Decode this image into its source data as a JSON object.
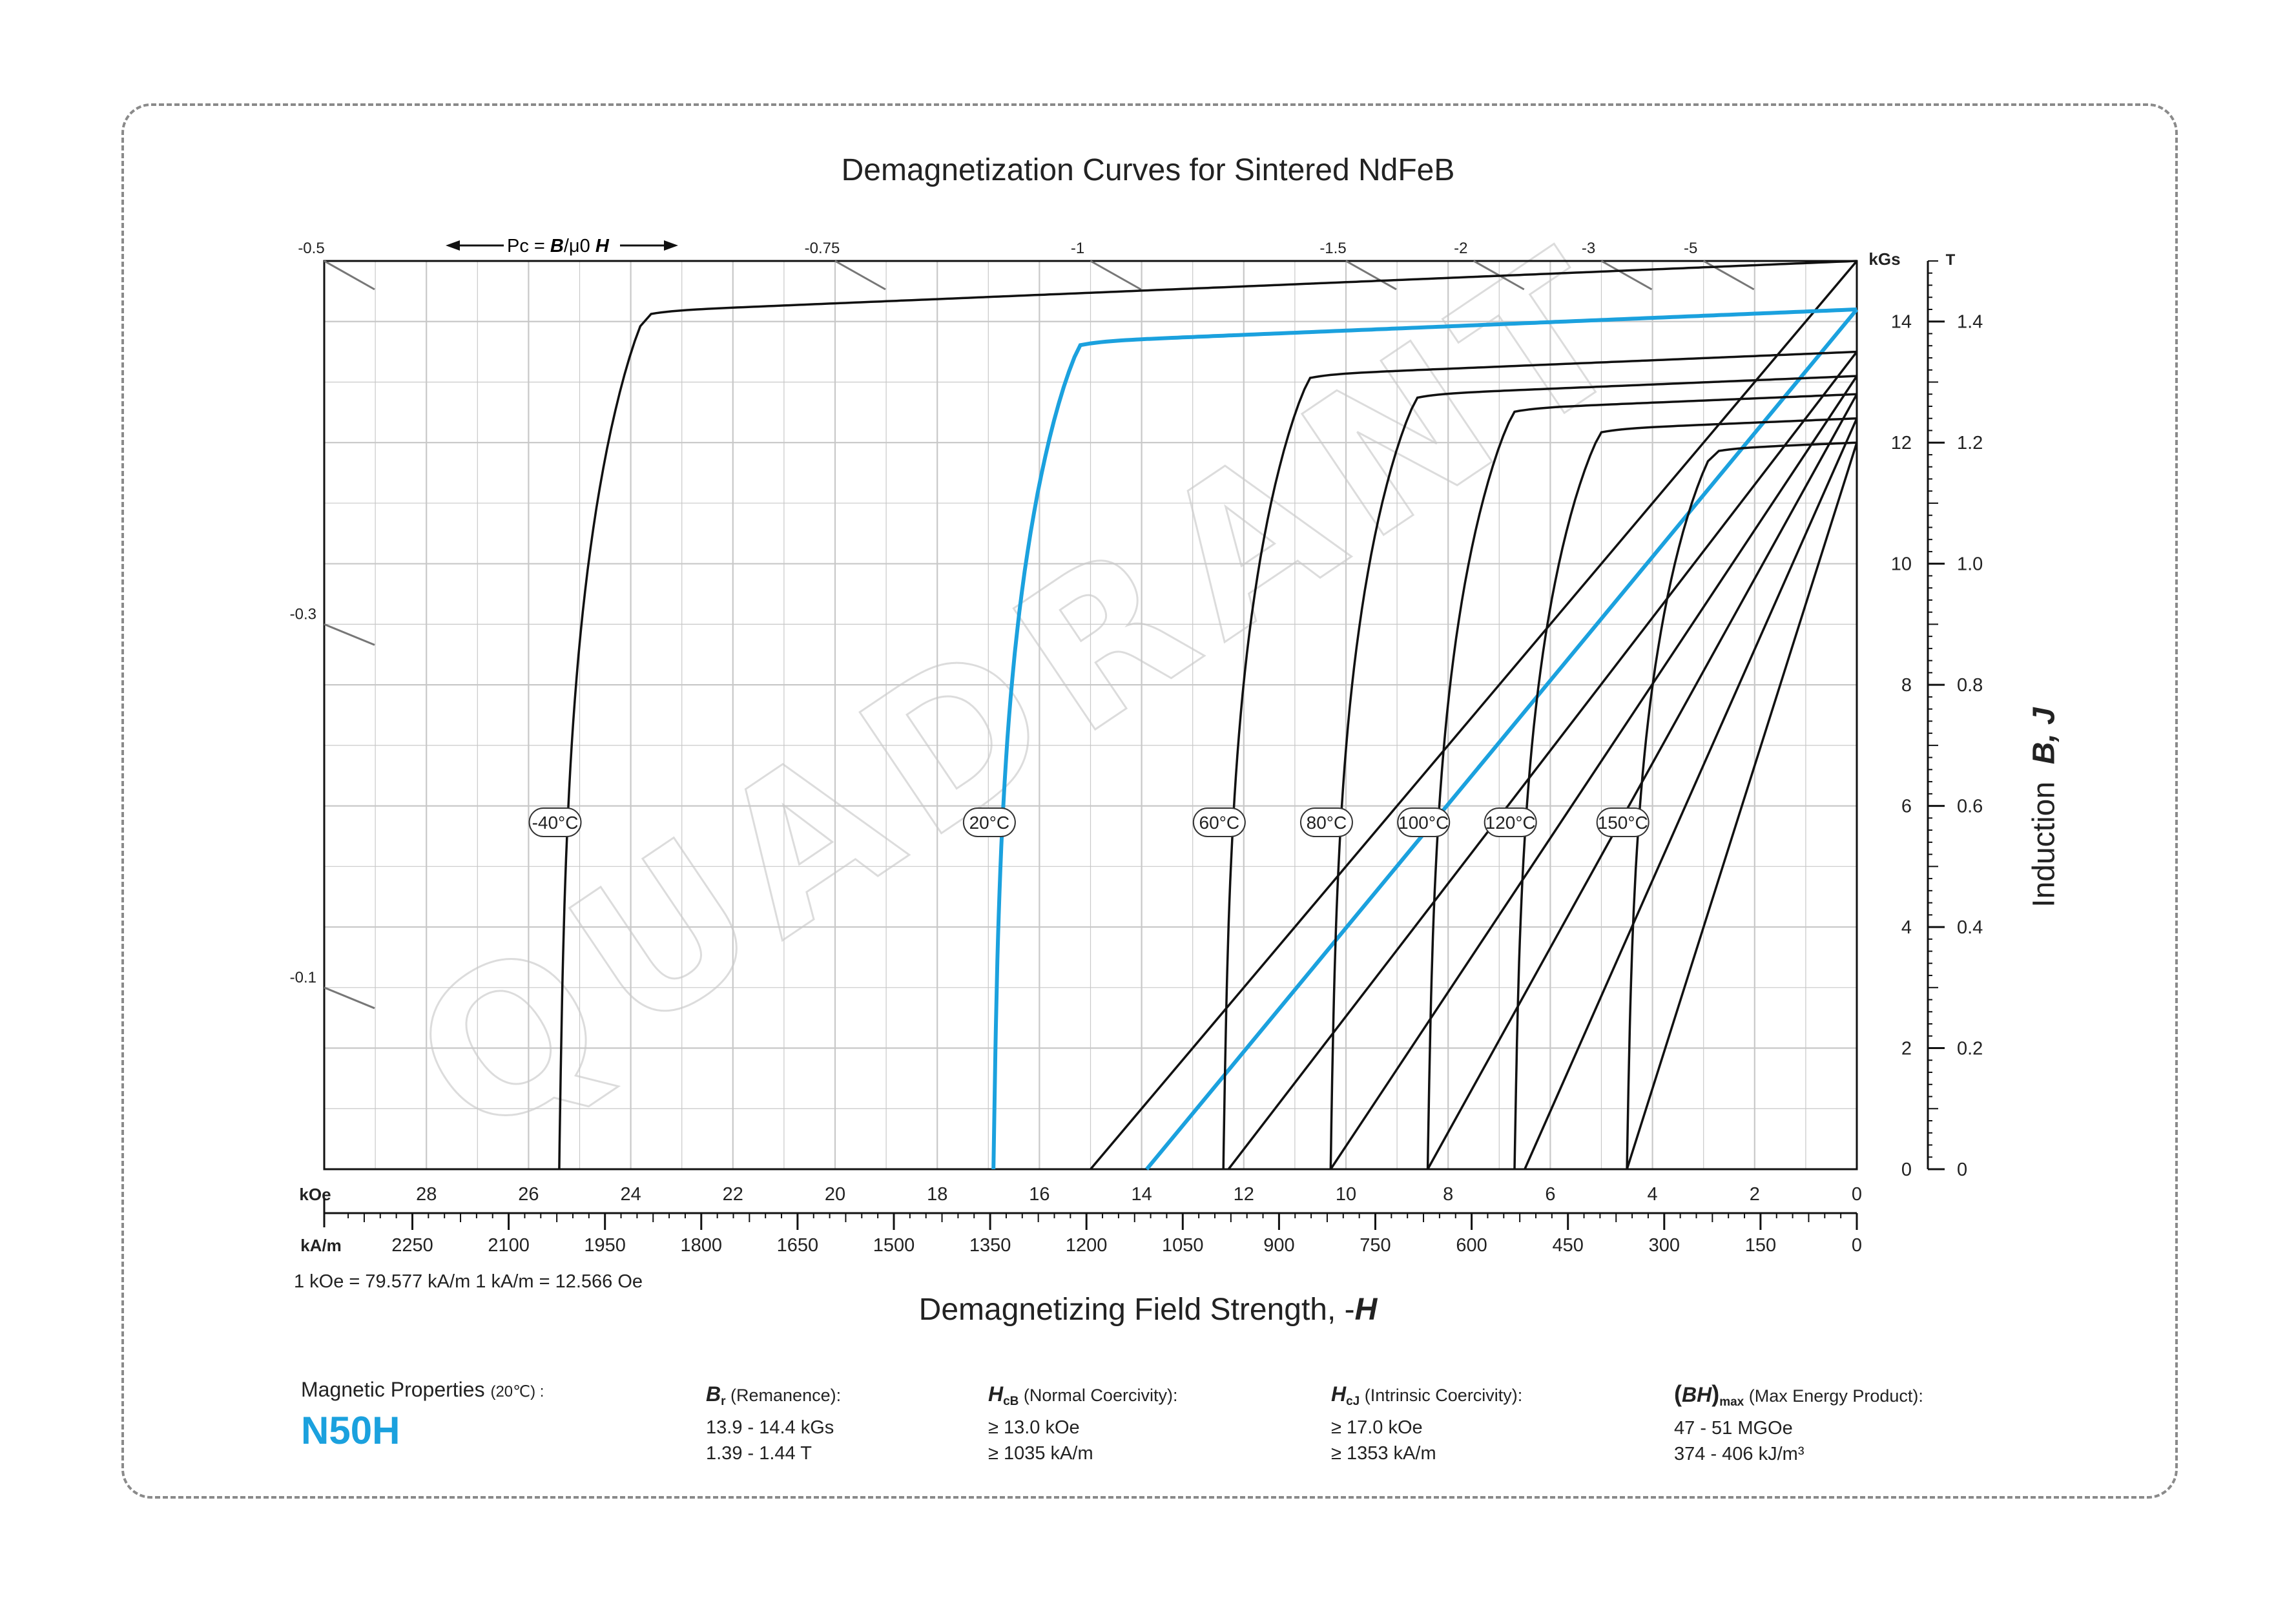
{
  "title": "Demagnetization Curves for Sintered NdFeB",
  "x_axis": {
    "title_prefix": "Demagnetizing Field Strength, -",
    "title_symbol": "H",
    "unit_top": "kOe",
    "unit_bottom": "kA/m",
    "conversion": "1 kOe = 79.577 kA/m   1 kA/m = 12.566 Oe"
  },
  "y_axis": {
    "title_prefix": "Induction",
    "title_symbols": "B, J",
    "unit_left": "kGs",
    "unit_right": "T"
  },
  "pc_label": {
    "prefix": "Pc = ",
    "b": "B",
    "mid": "/μ0 ",
    "h": "H"
  },
  "watermark": "QUADRANT",
  "properties": {
    "label": "Magnetic Properties",
    "label_cond": "(20℃) :",
    "grade": "N50H",
    "br": {
      "sym": "B",
      "sub": "r",
      "name": "(Remanence):",
      "line1": "13.9 - 14.4 kGs",
      "line2": "1.39 - 1.44 T"
    },
    "hcb": {
      "sym": "H",
      "sub": "cB",
      "name": "(Normal Coercivity):",
      "line1": "≥ 13.0 kOe",
      "line2": "≥ 1035 kA/m"
    },
    "hcj": {
      "sym": "H",
      "sub": "cJ",
      "name": "(Intrinsic Coercivity):",
      "line1": "≥ 17.0 kOe",
      "line2": "≥ 1353 kA/m"
    },
    "bh": {
      "sym": "BH",
      "sub": "max",
      "name": "(Max Energy Product):",
      "line1": "47 - 51 MGOe",
      "line2": "374 - 406 kJ/m³"
    }
  },
  "colors": {
    "highlight": "#1ba1de",
    "curve": "#111111",
    "grid": "#c8c8c8"
  },
  "chart_data": {
    "type": "line",
    "title": "Demagnetization Curves for Sintered NdFeB",
    "x_label": "Demagnetizing Field Strength, -H",
    "y_label": "Induction B, J",
    "xlim_koe": [
      30,
      0
    ],
    "ylim_kgs": [
      0,
      15
    ],
    "x_ticks_koe": [
      28,
      26,
      24,
      22,
      20,
      18,
      16,
      14,
      12,
      10,
      8,
      6,
      4,
      2,
      0
    ],
    "x_ticks_kam": [
      2250,
      2100,
      1950,
      1800,
      1650,
      1500,
      1350,
      1200,
      1050,
      900,
      750,
      600,
      450,
      300,
      150,
      0
    ],
    "y_ticks_kgs": [
      0,
      2,
      4,
      6,
      8,
      10,
      12,
      14
    ],
    "y_ticks_t": [
      "0",
      "0.2",
      "0.4",
      "0.6",
      "0.8",
      "1.0",
      "1.2",
      "1.4"
    ],
    "pc_lines": [
      "-0.5",
      "-0.75",
      "-1",
      "-1.5",
      "-2",
      "-3",
      "-5",
      "-0.3",
      "-0.1"
    ],
    "grid": true,
    "series": [
      {
        "name": "-40°C",
        "jr": 15.0,
        "hcj": 25.5,
        "hcb": 15.0,
        "highlight": false
      },
      {
        "name": "20°C",
        "jr": 14.2,
        "hcj": 17.0,
        "hcb": 13.9,
        "highlight": true
      },
      {
        "name": "60°C",
        "jr": 13.5,
        "hcj": 12.5,
        "hcb": 12.3,
        "highlight": false
      },
      {
        "name": "80°C",
        "jr": 13.1,
        "hcj": 10.4,
        "hcb": 10.3,
        "highlight": false
      },
      {
        "name": "100°C",
        "jr": 12.8,
        "hcj": 8.5,
        "hcb": 8.4,
        "highlight": false
      },
      {
        "name": "120°C",
        "jr": 12.4,
        "hcj": 6.8,
        "hcb": 6.5,
        "highlight": false
      },
      {
        "name": "150°C",
        "jr": 12.0,
        "hcj": 4.6,
        "hcb": 4.5,
        "highlight": false
      }
    ]
  }
}
